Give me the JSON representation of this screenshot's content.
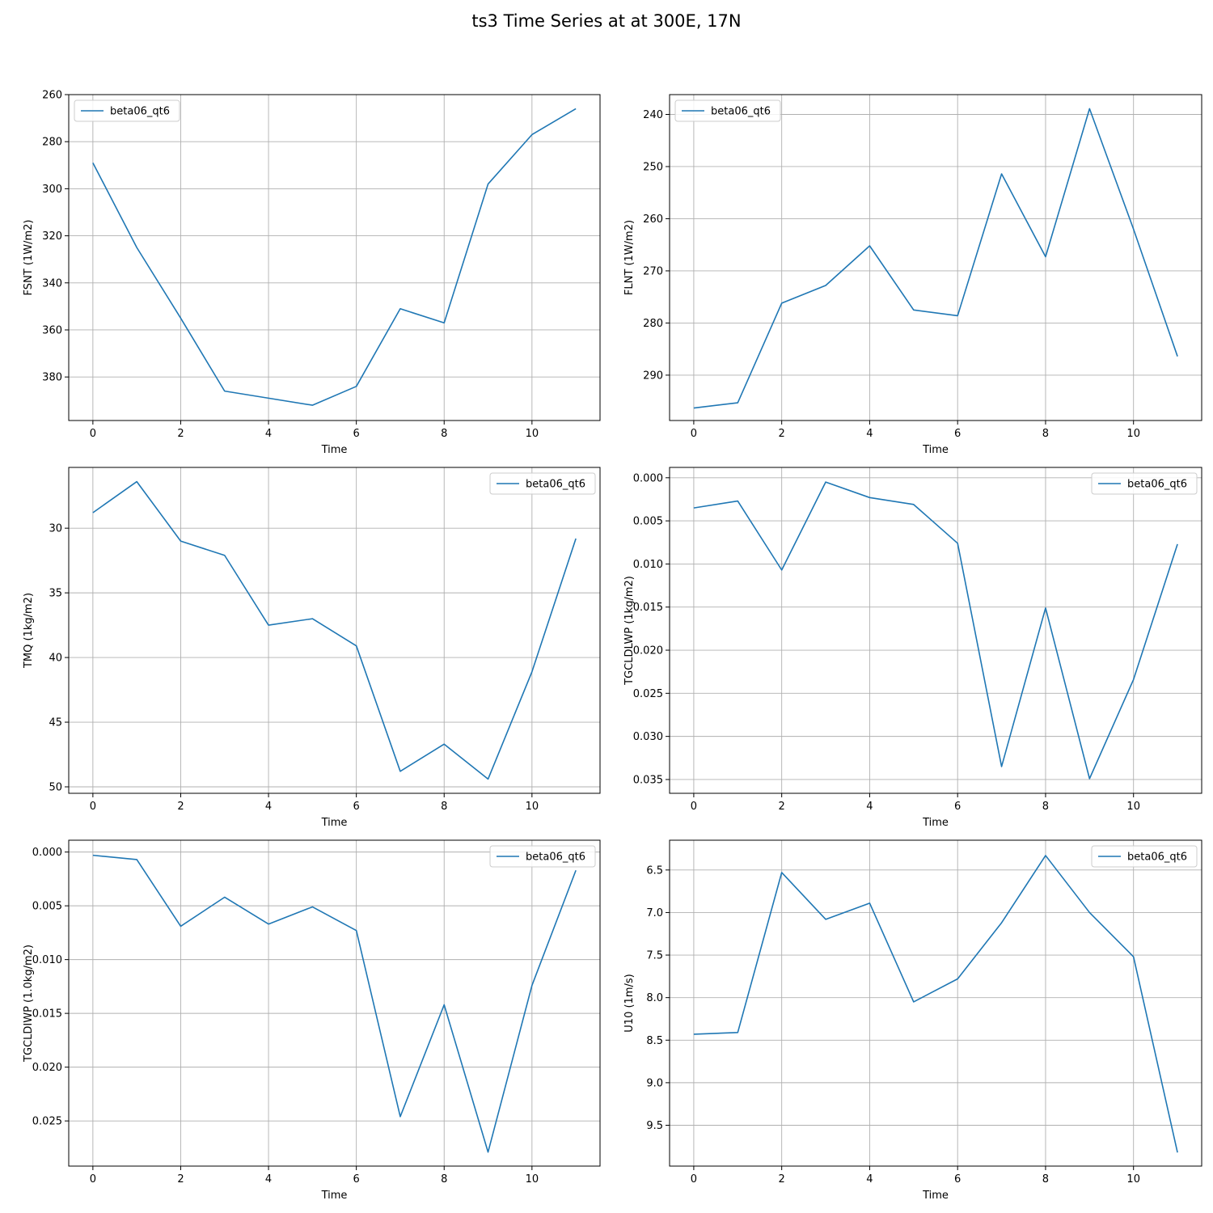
{
  "figure": {
    "title": "ts3 Time Series at at 300E, 17N"
  },
  "colors": {
    "series": "#1f77b4",
    "grid": "#b0b0b0",
    "axes": "#000000",
    "legend_border": "#cccccc"
  },
  "chart_data": [
    {
      "type": "line",
      "title": "",
      "xlabel": "Time",
      "ylabel": "FSNT (1W/m2)",
      "x": [
        0,
        1,
        2,
        3,
        4,
        5,
        6,
        7,
        8,
        9,
        10,
        11
      ],
      "series": [
        {
          "name": "beta06_qt6",
          "values": [
            289,
            325,
            355,
            386,
            389,
            392,
            384,
            351,
            357,
            298,
            277,
            266
          ]
        }
      ],
      "xlim": [
        -0.55,
        11.55
      ],
      "ylim": [
        260,
        398.5
      ],
      "y_inverted": true,
      "xticks": [
        0,
        2,
        4,
        6,
        8,
        10
      ],
      "yticks": [
        260,
        280,
        300,
        320,
        340,
        360,
        380
      ],
      "ytick_labels": [
        "260",
        "280",
        "300",
        "320",
        "340",
        "360",
        "380"
      ],
      "grid": true,
      "legend": "upper-left"
    },
    {
      "type": "line",
      "title": "",
      "xlabel": "Time",
      "ylabel": "FLNT (1W/m2)",
      "x": [
        0,
        1,
        2,
        3,
        4,
        5,
        6,
        7,
        8,
        9,
        10,
        11
      ],
      "series": [
        {
          "name": "beta06_qt6",
          "values": [
            296.3,
            295.3,
            276.2,
            272.8,
            265.2,
            277.5,
            278.6,
            251.4,
            267.3,
            238.9,
            262.0,
            286.4
          ]
        }
      ],
      "xlim": [
        -0.55,
        11.55
      ],
      "ylim": [
        236.2,
        298.7
      ],
      "y_inverted": true,
      "xticks": [
        0,
        2,
        4,
        6,
        8,
        10
      ],
      "yticks": [
        240,
        250,
        260,
        270,
        280,
        290
      ],
      "ytick_labels": [
        "240",
        "250",
        "260",
        "270",
        "280",
        "290"
      ],
      "grid": true,
      "legend": "upper-left"
    },
    {
      "type": "line",
      "title": "",
      "xlabel": "Time",
      "ylabel": "TMQ (1kg/m2)",
      "x": [
        0,
        1,
        2,
        3,
        4,
        5,
        6,
        7,
        8,
        9,
        10,
        11
      ],
      "series": [
        {
          "name": "beta06_qt6",
          "values": [
            28.8,
            26.4,
            31.0,
            32.1,
            37.5,
            37.0,
            39.1,
            48.8,
            46.7,
            49.4,
            41.1,
            30.8
          ]
        }
      ],
      "xlim": [
        -0.55,
        11.55
      ],
      "ylim": [
        25.3,
        50.5
      ],
      "y_inverted": true,
      "xticks": [
        0,
        2,
        4,
        6,
        8,
        10
      ],
      "yticks": [
        30,
        35,
        40,
        45,
        50
      ],
      "ytick_labels": [
        "30",
        "35",
        "40",
        "45",
        "50"
      ],
      "grid": true,
      "legend": "upper-right"
    },
    {
      "type": "line",
      "title": "",
      "xlabel": "Time",
      "ylabel": "TGCLDLWP (1kg/m2)",
      "x": [
        0,
        1,
        2,
        3,
        4,
        5,
        6,
        7,
        8,
        9,
        10,
        11
      ],
      "series": [
        {
          "name": "beta06_qt6",
          "values": [
            0.0035,
            0.0027,
            0.0107,
            0.0005,
            0.0023,
            0.0031,
            0.0076,
            0.0335,
            0.0151,
            0.0349,
            0.0234,
            0.0077
          ]
        }
      ],
      "xlim": [
        -0.55,
        11.55
      ],
      "ylim": [
        -0.0012,
        0.0366
      ],
      "y_inverted": true,
      "xticks": [
        0,
        2,
        4,
        6,
        8,
        10
      ],
      "yticks": [
        0.0,
        0.005,
        0.01,
        0.015,
        0.02,
        0.025,
        0.03,
        0.035
      ],
      "ytick_labels": [
        "0.000",
        "0.005",
        "0.010",
        "0.015",
        "0.020",
        "0.025",
        "0.030",
        "0.035"
      ],
      "grid": true,
      "legend": "upper-right"
    },
    {
      "type": "line",
      "title": "",
      "xlabel": "Time",
      "ylabel": "TGCLDIWP (1.0kg/m2)",
      "x": [
        0,
        1,
        2,
        3,
        4,
        5,
        6,
        7,
        8,
        9,
        10,
        11
      ],
      "series": [
        {
          "name": "beta06_qt6",
          "values": [
            0.0003,
            0.0007,
            0.0069,
            0.0042,
            0.0067,
            0.0051,
            0.0073,
            0.0246,
            0.0142,
            0.0279,
            0.0124,
            0.0017
          ]
        }
      ],
      "xlim": [
        -0.55,
        11.55
      ],
      "ylim": [
        -0.0011,
        0.0292
      ],
      "y_inverted": true,
      "xticks": [
        0,
        2,
        4,
        6,
        8,
        10
      ],
      "yticks": [
        0.0,
        0.005,
        0.01,
        0.015,
        0.02,
        0.025
      ],
      "ytick_labels": [
        "0.000",
        "0.005",
        "0.010",
        "0.015",
        "0.020",
        "0.025"
      ],
      "grid": true,
      "legend": "upper-right"
    },
    {
      "type": "line",
      "title": "",
      "xlabel": "Time",
      "ylabel": "U10 (1m/s)",
      "x": [
        0,
        1,
        2,
        3,
        4,
        5,
        6,
        7,
        8,
        9,
        10,
        11
      ],
      "series": [
        {
          "name": "beta06_qt6",
          "values": [
            8.43,
            8.41,
            6.53,
            7.08,
            6.89,
            8.05,
            7.78,
            7.12,
            6.33,
            7.0,
            7.52,
            9.82
          ]
        }
      ],
      "xlim": [
        -0.55,
        11.55
      ],
      "ylim": [
        6.15,
        9.98
      ],
      "y_inverted": true,
      "xticks": [
        0,
        2,
        4,
        6,
        8,
        10
      ],
      "yticks": [
        6.5,
        7.0,
        7.5,
        8.0,
        8.5,
        9.0,
        9.5
      ],
      "ytick_labels": [
        "6.5",
        "7.0",
        "7.5",
        "8.0",
        "8.5",
        "9.0",
        "9.5"
      ],
      "grid": true,
      "legend": "upper-right"
    }
  ]
}
